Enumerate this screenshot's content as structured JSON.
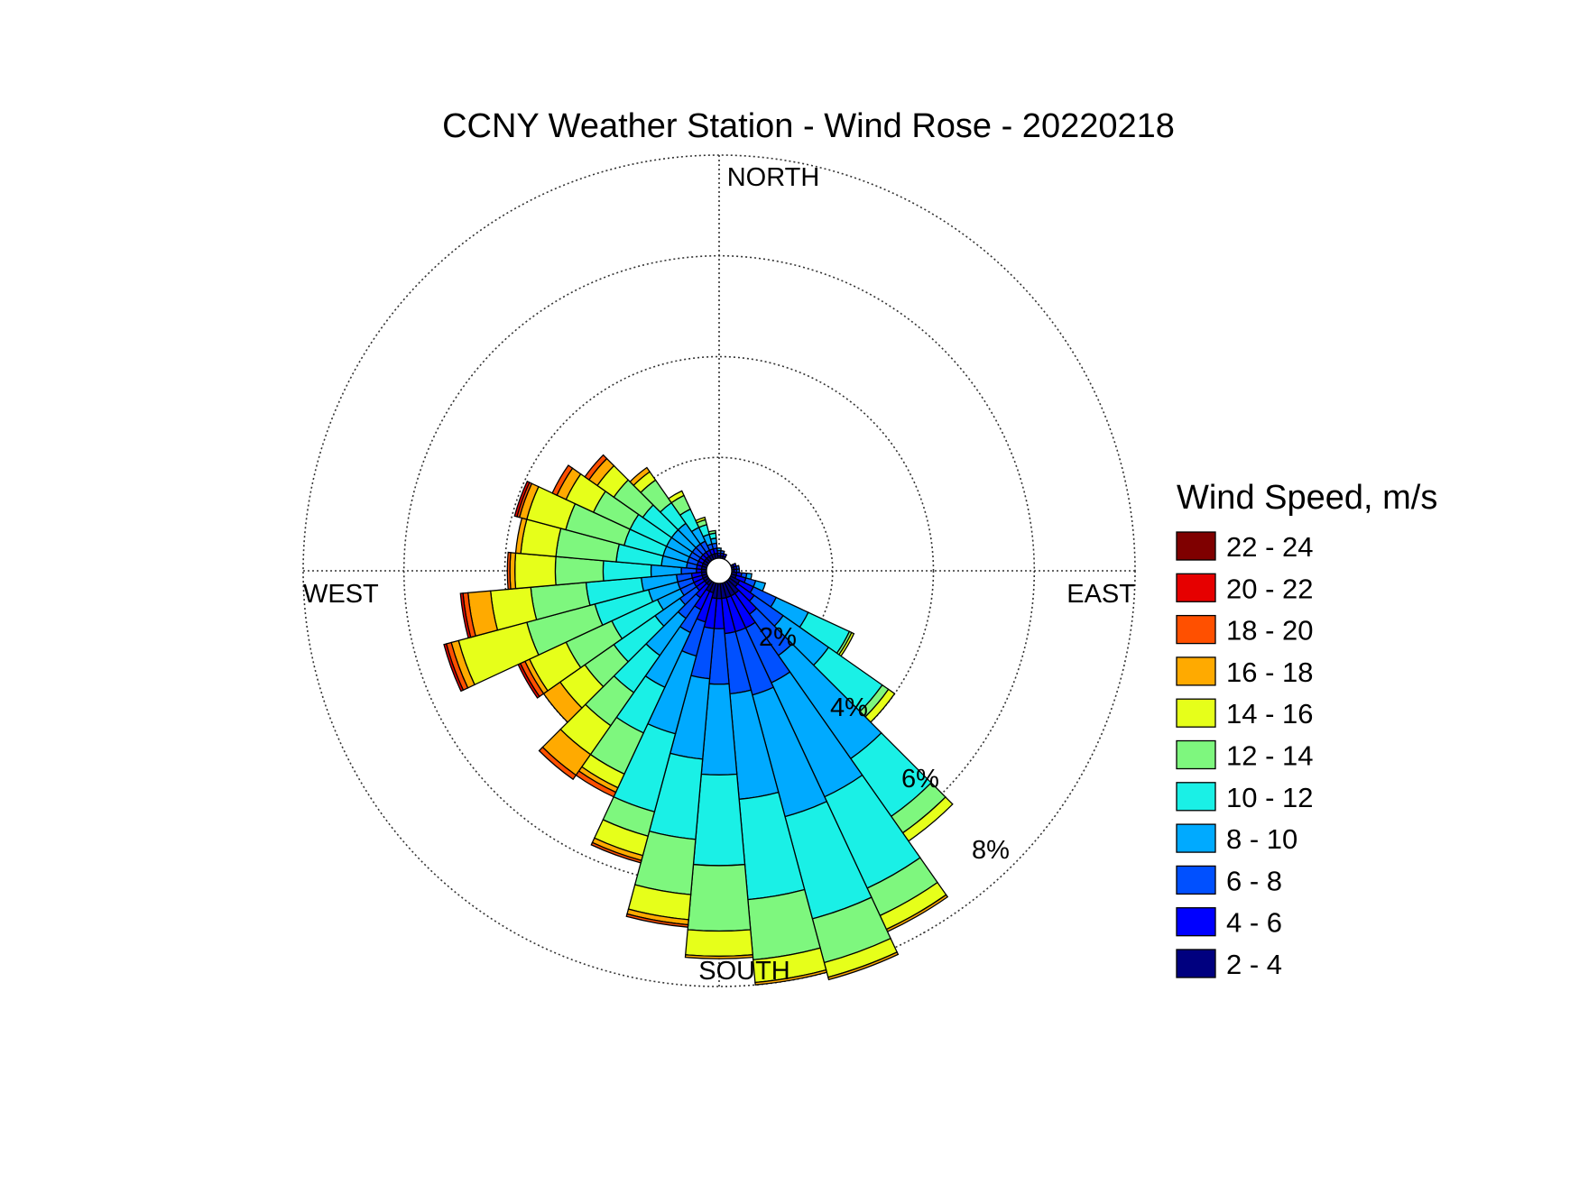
{
  "chart_data": {
    "type": "windrose",
    "title": "CCNY Weather Station - Wind Rose - 20220218",
    "directions_label": {
      "north": "NORTH",
      "east": "EAST",
      "south": "SOUTH",
      "west": "WEST"
    },
    "ring_labels": [
      "2%",
      "4%",
      "6%",
      "8%"
    ],
    "rings_percent": [
      2,
      4,
      6,
      8
    ],
    "max_percent": 8,
    "legend_title": "Wind Speed, m/s",
    "speed_bins": [
      {
        "label": "2 - 4",
        "color": "#00007f"
      },
      {
        "label": "4 - 6",
        "color": "#0000ff"
      },
      {
        "label": "6 - 8",
        "color": "#0050ff"
      },
      {
        "label": "8 - 10",
        "color": "#00aaff"
      },
      {
        "label": "10 - 12",
        "color": "#1af0e6"
      },
      {
        "label": "12 - 14",
        "color": "#7ef77e"
      },
      {
        "label": "14 - 16",
        "color": "#e6ff1a"
      },
      {
        "label": "16 - 18",
        "color": "#ffaa00"
      },
      {
        "label": "18 - 20",
        "color": "#ff5000"
      },
      {
        "label": "20 - 22",
        "color": "#e60000"
      },
      {
        "label": "22 - 24",
        "color": "#7f0000"
      }
    ],
    "sector_width_deg": 10,
    "sectors": [
      {
        "direction_deg": 120,
        "cumulative_percent": [
          0.2,
          0.5,
          1.0,
          1.7,
          2.6,
          2.65,
          2.7
        ]
      },
      {
        "direction_deg": 130,
        "cumulative_percent": [
          0.2,
          0.6,
          1.3,
          2.4,
          3.7,
          3.85,
          4.0
        ]
      },
      {
        "direction_deg": 140,
        "cumulative_percent": [
          0.3,
          0.8,
          1.8,
          4.3,
          5.7,
          6.1,
          6.3
        ]
      },
      {
        "direction_deg": 150,
        "cumulative_percent": [
          0.3,
          1.0,
          2.2,
          4.7,
          6.7,
          7.3,
          7.6,
          7.65
        ]
      },
      {
        "direction_deg": 160,
        "cumulative_percent": [
          0.3,
          1.0,
          2.3,
          4.8,
          6.9,
          7.8,
          8.1,
          8.15
        ]
      },
      {
        "direction_deg": 170,
        "cumulative_percent": [
          0.3,
          1.0,
          2.2,
          4.3,
          6.3,
          7.5,
          7.95,
          8.0
        ]
      },
      {
        "direction_deg": 180,
        "cumulative_percent": [
          0.3,
          0.9,
          2.0,
          3.8,
          5.6,
          6.9,
          7.4,
          7.45
        ]
      },
      {
        "direction_deg": 190,
        "cumulative_percent": [
          0.3,
          0.9,
          1.9,
          3.5,
          5.1,
          6.2,
          6.7,
          6.8,
          6.85
        ]
      },
      {
        "direction_deg": 200,
        "cumulative_percent": [
          0.2,
          0.8,
          1.5,
          3.1,
          4.7,
          5.2,
          5.6,
          5.7,
          5.75
        ]
      },
      {
        "direction_deg": 210,
        "cumulative_percent": [
          0.2,
          0.6,
          1.1,
          2.3,
          3.3,
          4.2,
          4.5,
          4.6,
          4.7
        ]
      },
      {
        "direction_deg": 220,
        "cumulative_percent": [
          0.1,
          0.4,
          0.9,
          1.8,
          2.7,
          3.5,
          4.2,
          4.7,
          4.8
        ]
      },
      {
        "direction_deg": 230,
        "cumulative_percent": [
          0.1,
          0.3,
          0.7,
          1.3,
          2.3,
          3.0,
          3.6,
          4.0
        ]
      },
      {
        "direction_deg": 240,
        "cumulative_percent": [
          0.1,
          0.3,
          0.6,
          1.1,
          2.1,
          3.1,
          3.9,
          4.0,
          4.1,
          4.15
        ]
      },
      {
        "direction_deg": 250,
        "cumulative_percent": [
          0.1,
          0.3,
          0.6,
          1.2,
          2.3,
          3.7,
          5.1,
          5.25,
          5.35,
          5.4
        ]
      },
      {
        "direction_deg": 260,
        "cumulative_percent": [
          0.1,
          0.3,
          0.6,
          1.3,
          2.4,
          3.5,
          4.3,
          4.75,
          4.85,
          4.9
        ]
      },
      {
        "direction_deg": 270,
        "cumulative_percent": [
          0.1,
          0.2,
          0.5,
          1.1,
          2.05,
          3.0,
          3.8,
          3.9,
          3.95
        ]
      },
      {
        "direction_deg": 280,
        "cumulative_percent": [
          0.1,
          0.2,
          0.4,
          0.9,
          1.8,
          3.0,
          3.7,
          3.8
        ]
      },
      {
        "direction_deg": 290,
        "cumulative_percent": [
          0.1,
          0.2,
          0.4,
          0.9,
          1.7,
          2.9,
          3.7,
          3.85,
          3.9,
          3.95
        ]
      },
      {
        "direction_deg": 300,
        "cumulative_percent": [
          0.1,
          0.2,
          0.4,
          0.9,
          1.7,
          2.5,
          3.1,
          3.3,
          3.4
        ]
      },
      {
        "direction_deg": 310,
        "cumulative_percent": [
          0.1,
          0.2,
          0.4,
          0.9,
          1.6,
          2.3,
          2.7,
          2.9,
          3.0
        ]
      },
      {
        "direction_deg": 320,
        "cumulative_percent": [
          0.1,
          0.2,
          0.4,
          0.9,
          1.4,
          1.95,
          2.15,
          2.25
        ]
      },
      {
        "direction_deg": 330,
        "cumulative_percent": [
          0.1,
          0.2,
          0.4,
          0.7,
          1.1,
          1.4,
          1.5
        ]
      },
      {
        "direction_deg": 340,
        "cumulative_percent": [
          0.1,
          0.2,
          0.3,
          0.5,
          0.7,
          0.8,
          0.85
        ]
      },
      {
        "direction_deg": 350,
        "cumulative_percent": [
          0.1,
          0.2,
          0.3,
          0.4,
          0.5,
          0.55
        ]
      },
      {
        "direction_deg": 0,
        "cumulative_percent": [
          0.05,
          0.1,
          0.15,
          0.2
        ]
      },
      {
        "direction_deg": 10,
        "cumulative_percent": [
          0.05,
          0.1,
          0.15
        ]
      },
      {
        "direction_deg": 20,
        "cumulative_percent": [
          0.05,
          0.1
        ]
      },
      {
        "direction_deg": 70,
        "cumulative_percent": [
          0.05,
          0.1
        ]
      },
      {
        "direction_deg": 80,
        "cumulative_percent": [
          0.05,
          0.1,
          0.15
        ]
      },
      {
        "direction_deg": 90,
        "cumulative_percent": [
          0.05,
          0.1,
          0.15
        ]
      },
      {
        "direction_deg": 100,
        "cumulative_percent": [
          0.1,
          0.2,
          0.3,
          0.4
        ]
      },
      {
        "direction_deg": 110,
        "cumulative_percent": [
          0.1,
          0.3,
          0.5,
          0.7
        ]
      }
    ],
    "grid": true,
    "legend_position": "right"
  }
}
